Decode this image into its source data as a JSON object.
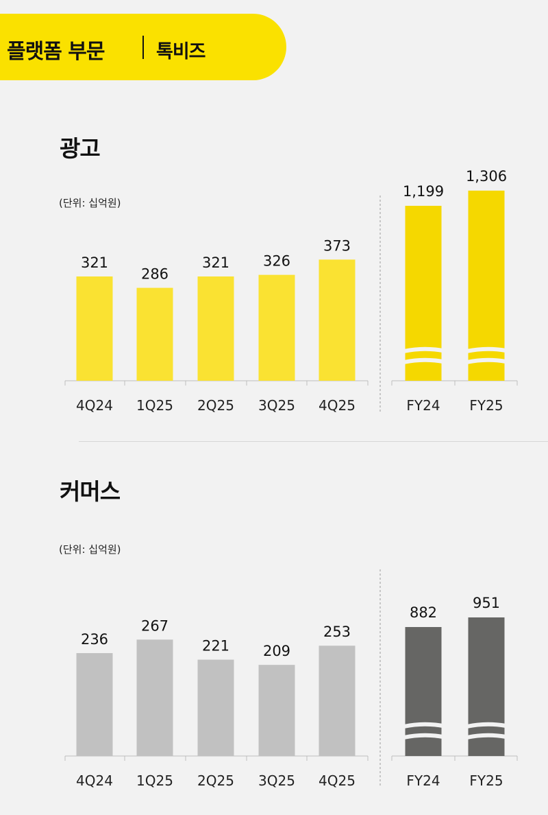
{
  "header": {
    "title": "플랫폼 부문",
    "subtitle": "톡비즈"
  },
  "chart_data": [
    {
      "type": "bar",
      "title": "광고",
      "unit_label": "(단위: 십억원)",
      "quarterly": {
        "categories": [
          "4Q24",
          "1Q25",
          "2Q25",
          "3Q25",
          "4Q25"
        ],
        "values": [
          321,
          286,
          321,
          326,
          373
        ],
        "labels": [
          "321",
          "286",
          "321",
          "326",
          "373"
        ],
        "color": "#fae232"
      },
      "annual": {
        "categories": [
          "FY24",
          "FY25"
        ],
        "values": [
          1199,
          1306
        ],
        "labels": [
          "1,199",
          "1,306"
        ],
        "color": "#f5d800",
        "axis_break": true
      }
    },
    {
      "type": "bar",
      "title": "커머스",
      "unit_label": "(단위: 십억원)",
      "quarterly": {
        "categories": [
          "4Q24",
          "1Q25",
          "2Q25",
          "3Q25",
          "4Q25"
        ],
        "values": [
          236,
          267,
          221,
          209,
          253
        ],
        "labels": [
          "236",
          "267",
          "221",
          "209",
          "253"
        ],
        "color": "#c1c1c1"
      },
      "annual": {
        "categories": [
          "FY24",
          "FY25"
        ],
        "values": [
          882,
          951
        ],
        "labels": [
          "882",
          "951"
        ],
        "color": "#666664",
        "axis_break": true
      }
    }
  ]
}
